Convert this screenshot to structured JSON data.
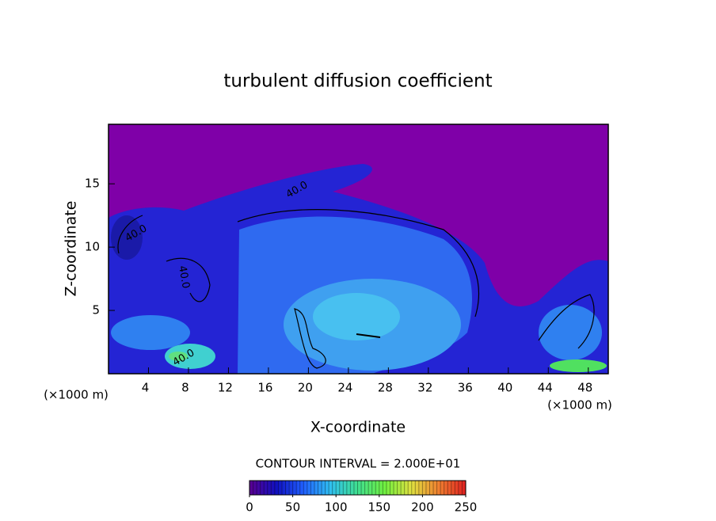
{
  "chart_data": {
    "type": "contour",
    "title": "turbulent diffusion coefficient",
    "x_label": "X-coordinate",
    "y_label": "Z-coordinate",
    "x_unit_left": "(×1000 m)",
    "x_unit_right": "(×1000 m)",
    "contour_interval_text": "CONTOUR INTERVAL = 2.000E+01",
    "contour_labels": [
      {
        "value": 40,
        "label": "40.0"
      },
      {
        "value": 40,
        "label": "40.0"
      },
      {
        "value": 40,
        "label": "40.0"
      },
      {
        "value": 40,
        "label": "40.0"
      }
    ],
    "xlim": [
      0,
      50
    ],
    "xticks": [
      4,
      8,
      12,
      16,
      20,
      24,
      28,
      32,
      36,
      40,
      44,
      48
    ],
    "ylim": [
      0,
      19.7
    ],
    "yticks": [
      5,
      10,
      15
    ],
    "background_color": "#7f00a8",
    "clim": [
      0,
      250
    ],
    "cticks": [
      0,
      50,
      100,
      150,
      200,
      250
    ],
    "colorscale": [
      "#5a0090",
      "#1010c0",
      "#2060ff",
      "#30c0f0",
      "#40e090",
      "#70f040",
      "#e0e040",
      "#f08030",
      "#e02020"
    ]
  }
}
